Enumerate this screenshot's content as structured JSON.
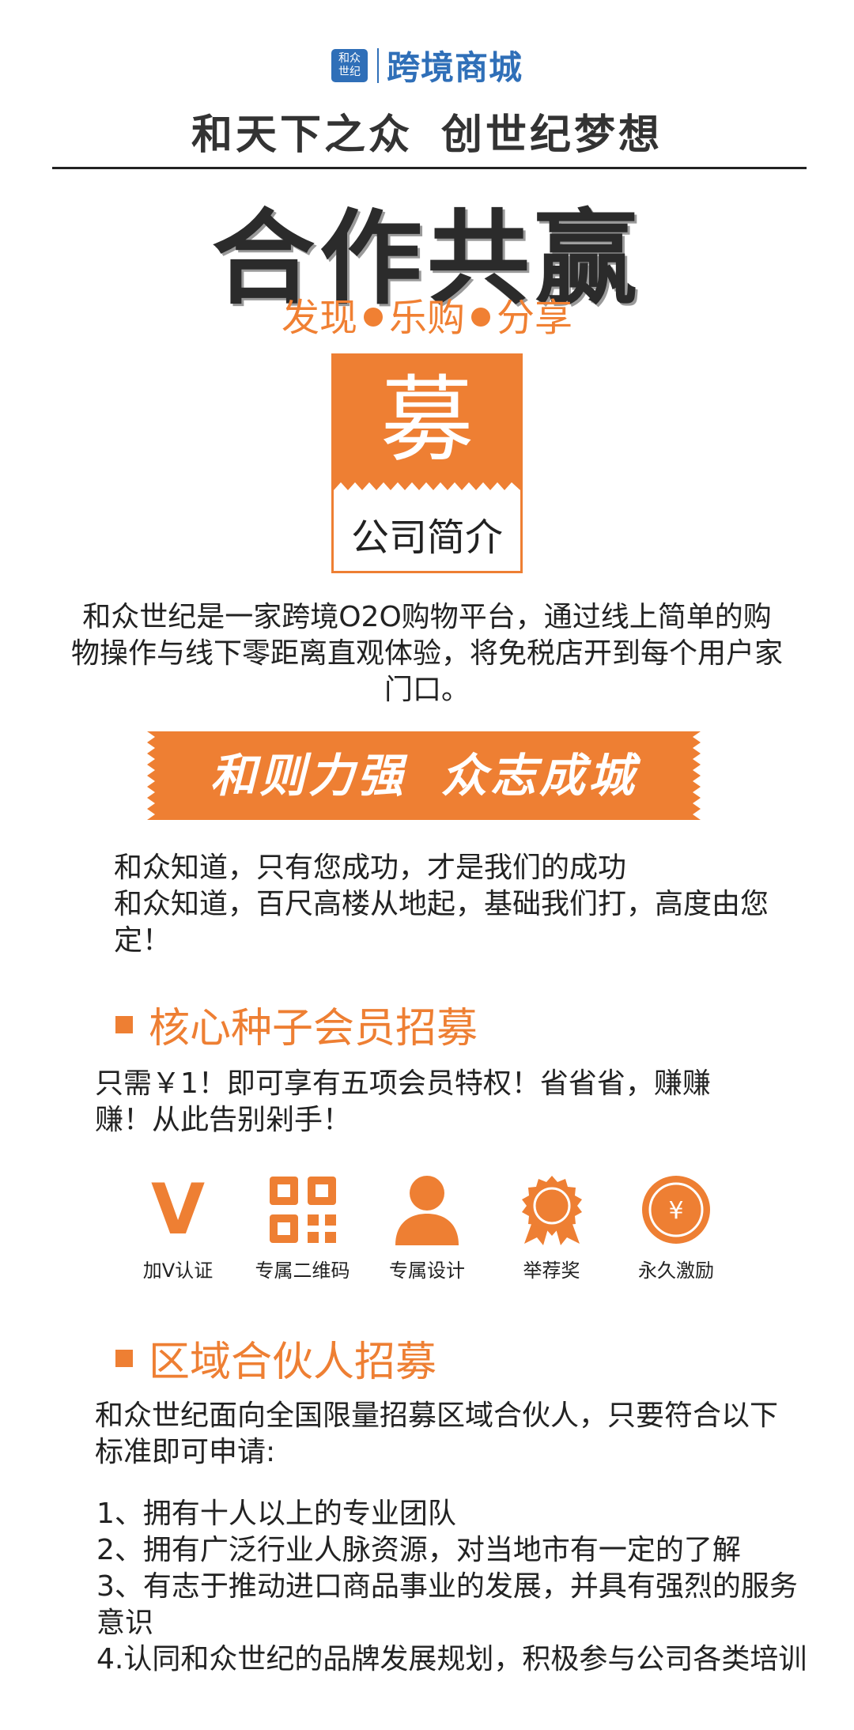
{
  "brand": {
    "logo_line1": "和众",
    "logo_line2": "世纪",
    "name": "跨境商城"
  },
  "slogan": {
    "part1": "和天下之众",
    "part2": "创世纪梦想"
  },
  "title": "合作共赢",
  "tagline": [
    "发现",
    "乐购",
    "分享"
  ],
  "badge": {
    "char": "募",
    "subtitle": "公司简介"
  },
  "intro": "和众世纪是一家跨境O2O购物平台，通过线上简单的购物操作与线下零距离直观体验，将免税店开到每个用户家门口。",
  "banner": {
    "part1": "和则力强",
    "part2": "众志成城"
  },
  "motto": {
    "line1": "和众知道，只有您成功，才是我们的成功",
    "line2": "和众知道，百尺高楼从地起，基础我们打，高度由您定！"
  },
  "section1": {
    "title": "核心种子会员招募",
    "text": "只需￥1！即可享有五项会员特权！省省省，赚赚赚！从此告别剁手！"
  },
  "privileges": [
    {
      "label": "加V认证",
      "icon": "v-icon"
    },
    {
      "label": "专属二维码",
      "icon": "qr-code-icon"
    },
    {
      "label": "专属设计",
      "icon": "person-icon"
    },
    {
      "label": "举荐奖",
      "icon": "award-icon"
    },
    {
      "label": "永久激励",
      "icon": "coin-icon"
    }
  ],
  "section2": {
    "title": "区域合伙人招募",
    "text": "和众世纪面向全国限量招募区域合伙人，只要符合以下标准即可申请:",
    "items": [
      "1、拥有十人以上的专业团队",
      "2、拥有广泛行业人脉资源，对当地市有一定的了解",
      "3、有志于推动进口商品事业的发展，并具有强烈的服务意识",
      "4.认同和众世纪的品牌发展规划，积极参与公司各类培训"
    ]
  },
  "colors": {
    "accent": "#ee7f33",
    "brand_blue": "#2f6fb8",
    "text": "#222222"
  }
}
